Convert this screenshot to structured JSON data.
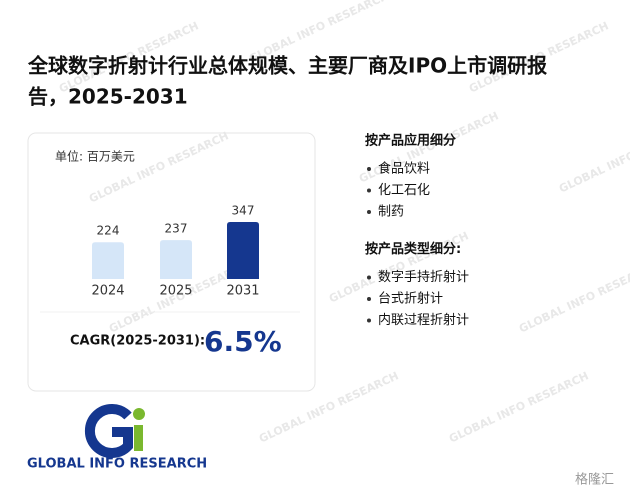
{
  "header": {
    "title_line1": "全球数字折射计行业总体规模、主要厂商及IPO上市调研报",
    "title_line2": "告，2025-2031"
  },
  "chart_data": {
    "type": "bar",
    "subtitle": "单位: 百万美元",
    "categories": [
      "2024",
      "2025",
      "2031"
    ],
    "values": [
      224,
      237,
      347
    ],
    "colors": [
      "#d5e6f8",
      "#d5e6f8",
      "#15378f"
    ]
  },
  "cagr": {
    "label": "CAGR(2025-2031):",
    "value": "6.5%"
  },
  "segments": [
    {
      "heading": "按产品应用细分",
      "items": [
        "食品饮料",
        "化工石化",
        "制药"
      ]
    },
    {
      "heading": "按产品类型细分:",
      "items": [
        "数字手持折射计",
        "台式折射计",
        "内联过程折射计"
      ]
    }
  ],
  "logo": {
    "text": "GLOBAL INFO RESEARCH"
  },
  "watermark": {
    "text": "GLOBAL INFO RESEARCH",
    "brand": "格隆汇"
  }
}
